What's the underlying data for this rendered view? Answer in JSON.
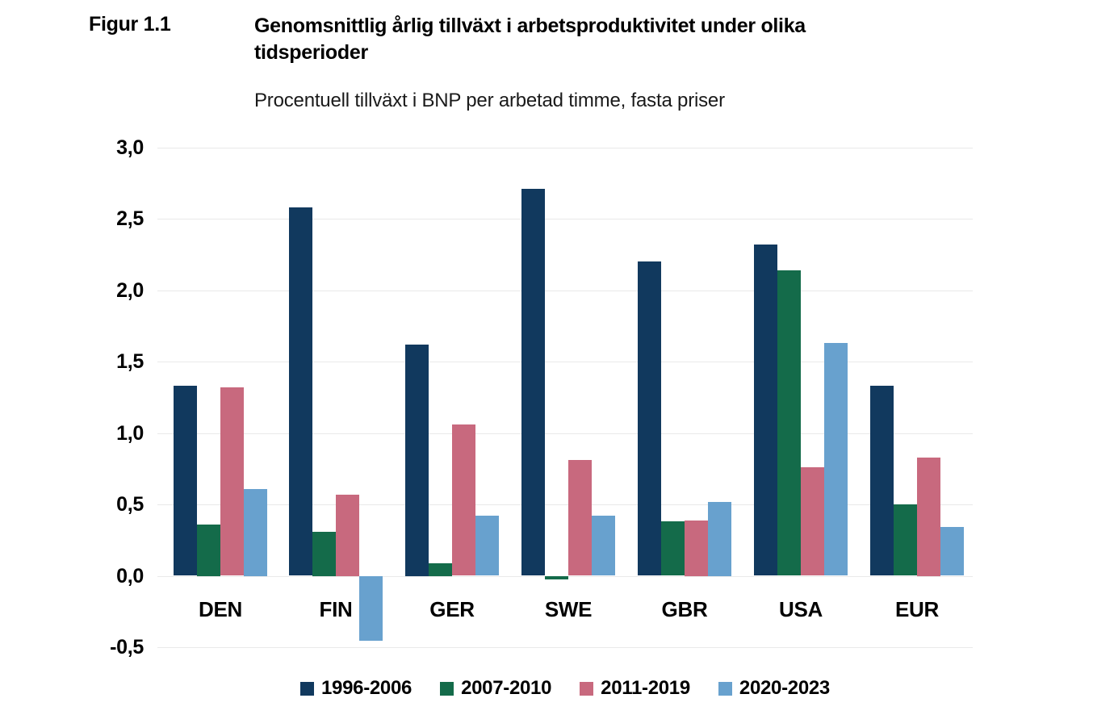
{
  "chart_data": {
    "type": "bar",
    "figure_label": "Figur 1.1",
    "title": "Genomsnittlig årlig tillväxt i arbetsproduktivitet under olika tidsperioder",
    "title_lines": [
      "Genomsnittlig årlig tillväxt i arbetsproduktivitet under olika",
      "tidsperioder"
    ],
    "subtitle": "Procentuell tillväxt i BNP per arbetad timme, fasta priser",
    "categories": [
      "DEN",
      "FIN",
      "GER",
      "SWE",
      "GBR",
      "USA",
      "EUR"
    ],
    "series": [
      {
        "name": "1996-2006",
        "color": "#11395e",
        "values": [
          1.33,
          2.58,
          1.62,
          2.71,
          2.2,
          2.32,
          1.33
        ]
      },
      {
        "name": "2007-2010",
        "color": "#146b4a",
        "values": [
          0.36,
          0.31,
          0.09,
          -0.02,
          0.38,
          2.14,
          0.5
        ]
      },
      {
        "name": "2011-2019",
        "color": "#c8697e",
        "values": [
          1.32,
          0.57,
          1.06,
          0.81,
          0.39,
          0.76,
          0.83
        ]
      },
      {
        "name": "2020-2023",
        "color": "#68a1ce",
        "values": [
          0.61,
          -0.45,
          0.42,
          0.42,
          0.52,
          1.63,
          0.34
        ]
      }
    ],
    "ylim": [
      -0.5,
      3.0
    ],
    "ytick_interval": 0.5,
    "yticks": [
      3.0,
      2.5,
      2.0,
      1.5,
      1.0,
      0.5,
      0.0,
      -0.5
    ],
    "ytick_labels": [
      "3,0",
      "2,5",
      "2,0",
      "1,5",
      "1,0",
      "0,5",
      "0,0",
      "-0,5"
    ],
    "grid": "horizontal",
    "gridline_color": "#e9e9e9",
    "legend_position": "bottom",
    "background_color": "#ffffff"
  }
}
